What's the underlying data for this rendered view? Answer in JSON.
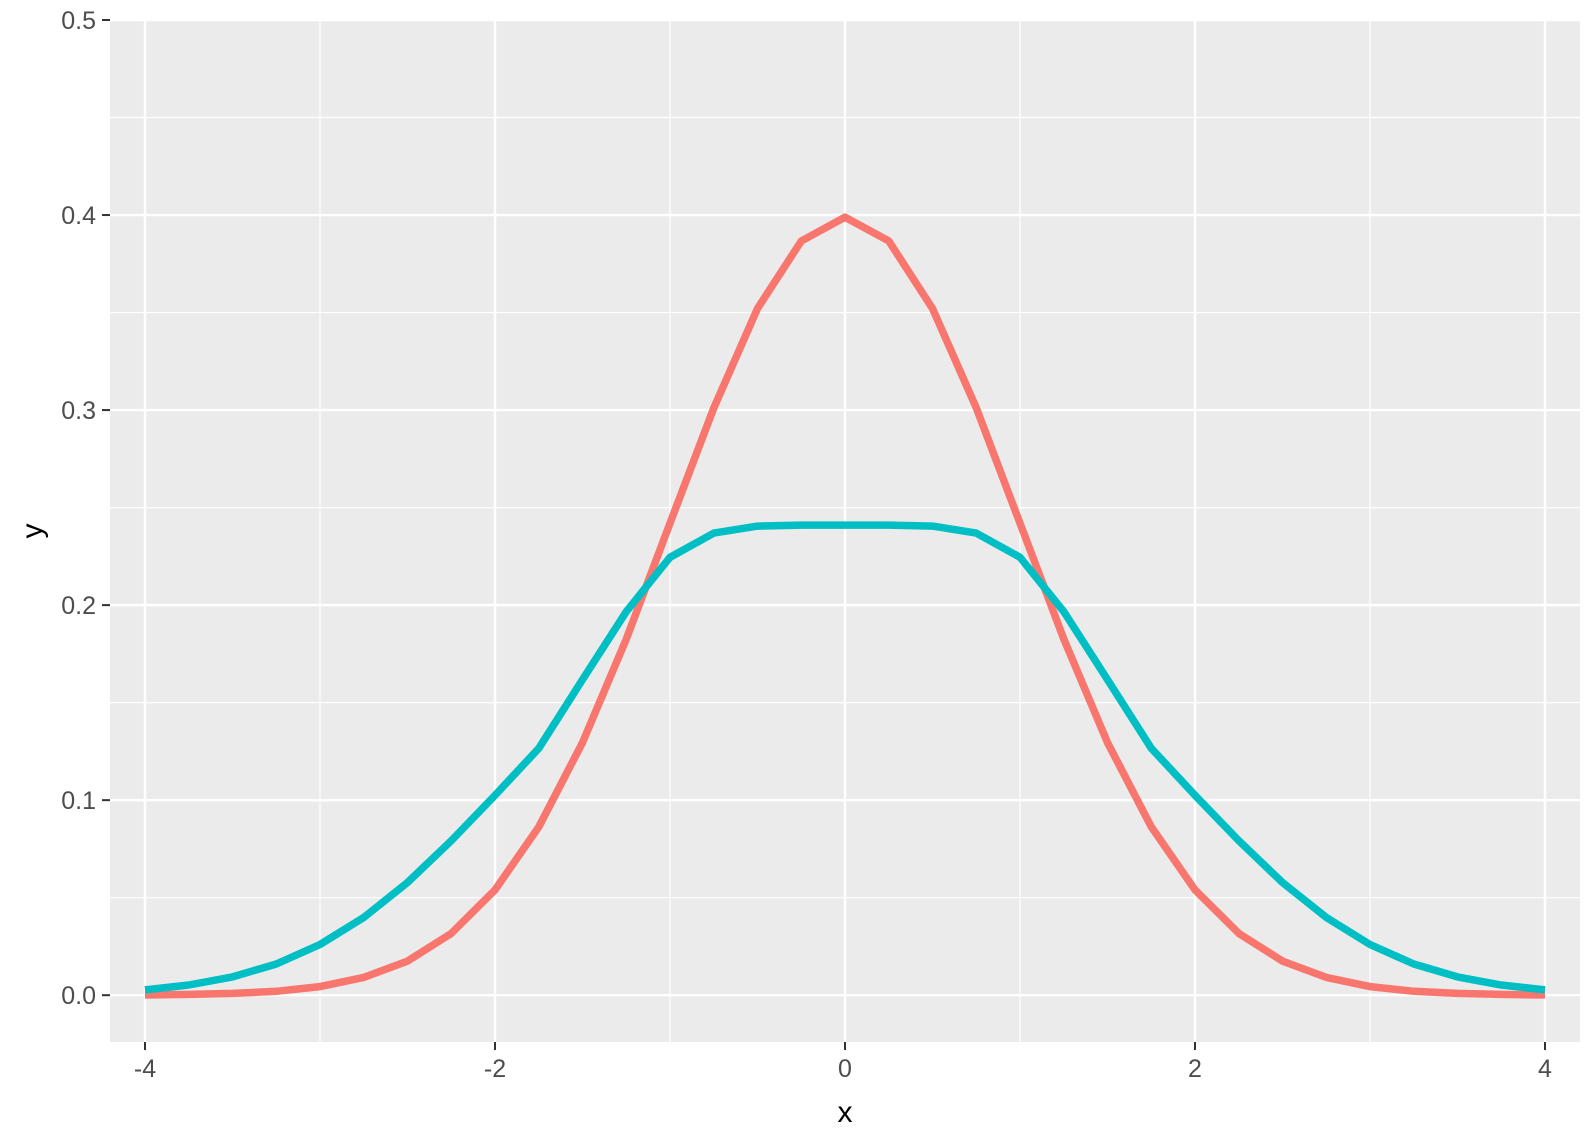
{
  "chart_data": {
    "type": "line",
    "title": "",
    "xlabel": "x",
    "ylabel": "y",
    "xlim": [
      -4.2,
      4.2
    ],
    "ylim": [
      -0.024,
      0.5
    ],
    "grid": true,
    "legend": "none",
    "xticks": [
      -4,
      -2,
      0,
      2,
      4
    ],
    "xtick_labels": [
      "-4",
      "-2",
      "0",
      "2",
      "4"
    ],
    "yticks": [
      0.0,
      0.1,
      0.2,
      0.3,
      0.4,
      0.5
    ],
    "ytick_labels": [
      "0.0",
      "0.1",
      "0.2",
      "0.3",
      "0.4",
      "0.5"
    ],
    "colors": {
      "panel": "#ebebeb",
      "grid": "#ffffff",
      "tick": "#333333"
    },
    "series": [
      {
        "color": "#F8766D",
        "x": [
          -4.0,
          -3.75,
          -3.5,
          -3.25,
          -3.0,
          -2.75,
          -2.5,
          -2.25,
          -2.0,
          -1.75,
          -1.5,
          -1.25,
          -1.0,
          -0.75,
          -0.5,
          -0.25,
          0.0,
          0.25,
          0.5,
          0.75,
          1.0,
          1.25,
          1.5,
          1.75,
          2.0,
          2.25,
          2.5,
          2.75,
          3.0,
          3.25,
          3.5,
          3.75,
          4.0
        ],
        "y": [
          0.0001,
          0.0004,
          0.0009,
          0.002,
          0.0044,
          0.0091,
          0.0175,
          0.0317,
          0.054,
          0.0863,
          0.1295,
          0.1826,
          0.242,
          0.3011,
          0.3521,
          0.3867,
          0.3989,
          0.3867,
          0.3521,
          0.3011,
          0.242,
          0.1826,
          0.1295,
          0.0863,
          0.054,
          0.0317,
          0.0175,
          0.0091,
          0.0044,
          0.002,
          0.0009,
          0.0004,
          0.0001
        ]
      },
      {
        "color": "#00BFC4",
        "x": [
          -4.0,
          -3.75,
          -3.5,
          -3.25,
          -3.0,
          -2.75,
          -2.5,
          -2.25,
          -2.0,
          -1.75,
          -1.5,
          -1.25,
          -1.0,
          -0.75,
          -0.5,
          -0.25,
          0.0,
          0.25,
          0.5,
          0.75,
          1.0,
          1.25,
          1.5,
          1.75,
          2.0,
          2.25,
          2.5,
          2.75,
          3.0,
          3.25,
          3.5,
          3.75,
          4.0
        ],
        "y": [
          0.0027,
          0.0052,
          0.0094,
          0.016,
          0.026,
          0.0399,
          0.0578,
          0.0792,
          0.1025,
          0.1266,
          0.1618,
          0.1967,
          0.2245,
          0.2369,
          0.2405,
          0.241,
          0.241,
          0.241,
          0.2405,
          0.2369,
          0.2245,
          0.1967,
          0.1618,
          0.1266,
          0.1025,
          0.0792,
          0.0578,
          0.0399,
          0.026,
          0.016,
          0.0094,
          0.0052,
          0.0027
        ]
      }
    ]
  }
}
